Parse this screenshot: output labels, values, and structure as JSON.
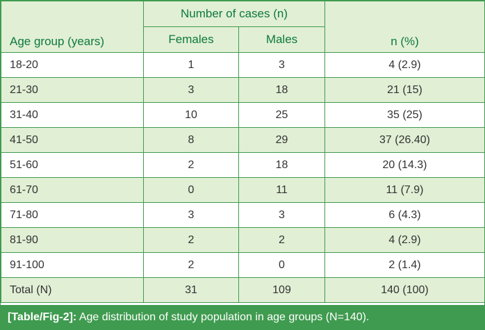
{
  "table": {
    "header": {
      "age_group": "Age group (years)",
      "number_of_cases": "Number of cases (n)",
      "females": "Females",
      "males": "Males",
      "n_percent": "n (%)"
    },
    "rows": [
      {
        "age": "18-20",
        "females": "1",
        "males": "3",
        "n_percent": "4 (2.9)"
      },
      {
        "age": "21-30",
        "females": "3",
        "males": "18",
        "n_percent": "21 (15)"
      },
      {
        "age": "31-40",
        "females": "10",
        "males": "25",
        "n_percent": "35 (25)"
      },
      {
        "age": "41-50",
        "females": "8",
        "males": "29",
        "n_percent": "37 (26.40)"
      },
      {
        "age": "51-60",
        "females": "2",
        "males": "18",
        "n_percent": "20 (14.3)"
      },
      {
        "age": "61-70",
        "females": "0",
        "males": "11",
        "n_percent": "11 (7.9)"
      },
      {
        "age": "71-80",
        "females": "3",
        "males": "3",
        "n_percent": "6 (4.3)"
      },
      {
        "age": "81-90",
        "females": "2",
        "males": "2",
        "n_percent": "4 (2.9)"
      },
      {
        "age": "91-100",
        "females": "2",
        "males": "0",
        "n_percent": "2 (1.4)"
      },
      {
        "age": "Total (N)",
        "females": "31",
        "males": "109",
        "n_percent": "140 (100)"
      }
    ]
  },
  "caption": {
    "label": "[Table/Fig-2]:",
    "text": " Age distribution of study population in age groups (N=140)."
  },
  "colors": {
    "border_green": "#3f9b4f",
    "header_text_green": "#0d7a3a",
    "stripe_green": "#e1efd5",
    "body_text": "#333333"
  }
}
